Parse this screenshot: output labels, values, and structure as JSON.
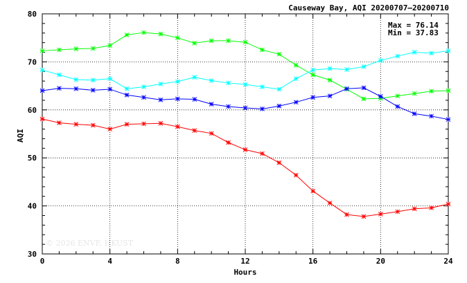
{
  "title": "Causeway Bay, AQI 20200707—20200710",
  "stats": {
    "max": "Max = 76.14",
    "min": "Min = 37.83"
  },
  "watermark": "© 2026  ENVF, HKUST",
  "chart_data": {
    "type": "line",
    "xlabel": "Hours",
    "ylabel": "AQI",
    "xlim": [
      0,
      24
    ],
    "ylim": [
      30,
      80
    ],
    "xticks": [
      0,
      4,
      8,
      12,
      16,
      20,
      24
    ],
    "yticks": [
      30,
      40,
      50,
      60,
      70,
      80
    ],
    "grid": true,
    "x": [
      0,
      1,
      2,
      3,
      4,
      5,
      6,
      7,
      8,
      9,
      10,
      11,
      12,
      13,
      14,
      15,
      16,
      17,
      18,
      19,
      20,
      21,
      22,
      23,
      24
    ],
    "series": [
      {
        "color": "#00ff00",
        "values": [
          72.3,
          72.5,
          72.7,
          72.8,
          73.4,
          75.6,
          76.1,
          75.8,
          75.0,
          73.9,
          74.4,
          74.4,
          74.1,
          72.5,
          71.6,
          69.3,
          67.3,
          66.2,
          64.3,
          62.3,
          62.4,
          62.9,
          63.4,
          63.9,
          64.0
        ]
      },
      {
        "color": "#00ffff",
        "values": [
          68.3,
          67.3,
          66.3,
          66.2,
          66.5,
          64.4,
          64.8,
          65.4,
          65.9,
          66.8,
          66.1,
          65.6,
          65.3,
          64.8,
          64.3,
          66.5,
          68.3,
          68.6,
          68.4,
          69.0,
          70.3,
          71.2,
          72.0,
          71.8,
          72.3
        ]
      },
      {
        "color": "#0000ff",
        "values": [
          64.0,
          64.5,
          64.4,
          64.1,
          64.3,
          63.1,
          62.6,
          62.1,
          62.3,
          62.2,
          61.2,
          60.7,
          60.4,
          60.2,
          60.8,
          61.6,
          62.6,
          62.9,
          64.4,
          64.6,
          62.8,
          60.7,
          59.2,
          58.7,
          58.0
        ]
      },
      {
        "color": "#ff0000",
        "values": [
          58.1,
          57.3,
          57.0,
          56.8,
          56.0,
          57.0,
          57.1,
          57.2,
          56.5,
          55.7,
          55.1,
          53.2,
          51.7,
          50.9,
          49.0,
          46.4,
          43.1,
          40.6,
          38.2,
          37.8,
          38.3,
          38.8,
          39.4,
          39.6,
          40.4
        ]
      }
    ]
  }
}
